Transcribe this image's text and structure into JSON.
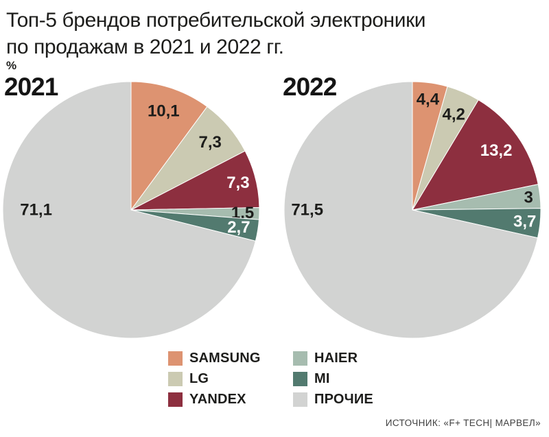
{
  "title": {
    "line1": "Топ-5 брендов потребительской электроники",
    "line2": "по продажам в 2021 и 2022 гг.",
    "unit": "%"
  },
  "source": "ИСТОЧНИК: «F+ TECH| МАРВЕЛ»",
  "legend": {
    "items": [
      {
        "label": "SAMSUNG",
        "color": "#DD9371"
      },
      {
        "label": "LG",
        "color": "#CBCAB2"
      },
      {
        "label": "YANDEX",
        "color": "#8D2F3F"
      },
      {
        "label": "HAIER",
        "color": "#A6BCAF"
      },
      {
        "label": "MI",
        "color": "#527A6F"
      },
      {
        "label": "ПРОЧИЕ",
        "color": "#D2D3D2"
      }
    ]
  },
  "chart_data": [
    {
      "type": "pie",
      "title": "2021",
      "unit": "%",
      "start_angle_deg": 0,
      "direction": "clockwise",
      "slices": [
        {
          "name": "SAMSUNG",
          "value": 10.1,
          "label": "10,1",
          "color": "#DD9371",
          "label_color": "#1d1d1b",
          "label_r": 0.81
        },
        {
          "name": "LG",
          "value": 7.3,
          "label": "7,3",
          "color": "#CBCAB2",
          "label_color": "#1d1d1b",
          "label_r": 0.81
        },
        {
          "name": "YANDEX",
          "value": 7.3,
          "label": "7,3",
          "color": "#8D2F3F",
          "label_color": "#ffffff",
          "label_r": 0.86
        },
        {
          "name": "HAIER",
          "value": 1.5,
          "label": "1,5",
          "color": "#A6BCAF",
          "label_color": "#1d1d1b",
          "label_r": 0.87
        },
        {
          "name": "MI",
          "value": 2.7,
          "label": "2,7",
          "color": "#527A6F",
          "label_color": "#ffffff",
          "label_r": 0.85
        },
        {
          "name": "ПРОЧИЕ",
          "value": 71.1,
          "label": "71,1",
          "color": "#D2D3D2",
          "label_color": "#1d1d1b",
          "label_r": 0.74,
          "label_angle_deg": 270
        }
      ]
    },
    {
      "type": "pie",
      "title": "2022",
      "unit": "%",
      "start_angle_deg": 0,
      "direction": "clockwise",
      "slices": [
        {
          "name": "SAMSUNG",
          "value": 4.4,
          "label": "4,4",
          "color": "#DD9371",
          "label_color": "#1d1d1b",
          "label_r": 0.87
        },
        {
          "name": "LG",
          "value": 4.2,
          "label": "4,2",
          "color": "#CBCAB2",
          "label_color": "#1d1d1b",
          "label_r": 0.81
        },
        {
          "name": "YANDEX",
          "value": 13.2,
          "label": "13,2",
          "color": "#8D2F3F",
          "label_color": "#ffffff",
          "label_r": 0.8
        },
        {
          "name": "HAIER",
          "value": 3.0,
          "label": "3",
          "color": "#A6BCAF",
          "label_color": "#1d1d1b",
          "label_r": 0.91
        },
        {
          "name": "MI",
          "value": 3.7,
          "label": "3,7",
          "color": "#527A6F",
          "label_color": "#ffffff",
          "label_r": 0.88
        },
        {
          "name": "ПРОЧИЕ",
          "value": 71.5,
          "label": "71,5",
          "color": "#D2D3D2",
          "label_color": "#1d1d1b",
          "label_r": 0.82,
          "label_angle_deg": 270
        }
      ]
    }
  ]
}
